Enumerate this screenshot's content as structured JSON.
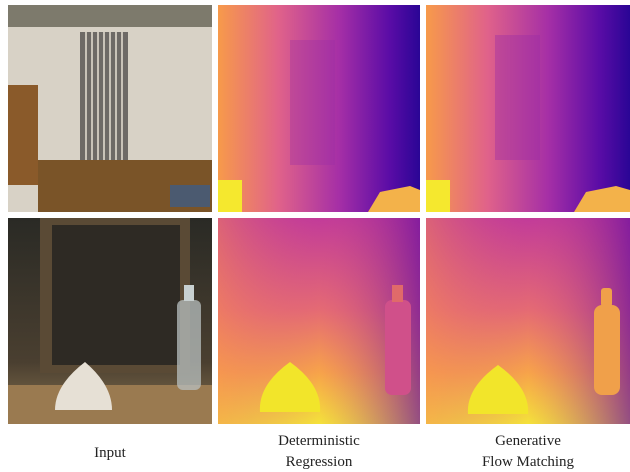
{
  "captions": [
    [
      "Input"
    ],
    [
      "Deterministic",
      "Regression"
    ],
    [
      "Generative",
      "Flow Matching"
    ]
  ]
}
